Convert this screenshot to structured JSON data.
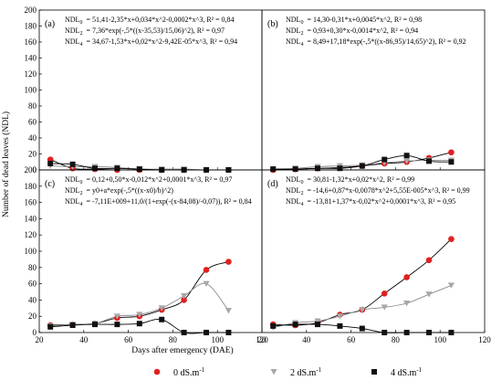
{
  "ylabel": "Number of dead leaves (NDL)",
  "xlabel": "Days after emergency (DAE)",
  "legend": [
    {
      "label": "0 dS.m",
      "sup": "-1",
      "marker": "circle",
      "color": "#e02020"
    },
    {
      "label": "2 dS.m",
      "sup": "-1",
      "marker": "triangle",
      "color": "#a8a8a8"
    },
    {
      "label": "4 dS.m",
      "sup": "-1",
      "marker": "square",
      "color": "#111111"
    }
  ],
  "chart_data": [
    {
      "type": "scatter",
      "panel": "(a)",
      "xlim": [
        20,
        120
      ],
      "ylim": [
        0,
        200
      ],
      "xticks": [],
      "yticks": [
        0,
        20,
        40,
        60,
        80,
        100,
        120,
        140,
        160,
        180,
        200
      ],
      "equations": [
        {
          "name": "NDL",
          "sub": "0",
          "text": "= 51,41-2,35*x+0,034*x^2-0,0002*x^3, R² = 0,84"
        },
        {
          "name": "NDL",
          "sub": "2",
          "text": "= 7,36*exp(-,5*((x-35,53)/15,06)^2), R² = 0,97"
        },
        {
          "name": "NDL",
          "sub": "4",
          "text": "= 34,67-1,53*x+0,02*x^2-9,42E-05*x^3, R² = 0,94"
        }
      ],
      "series": [
        {
          "name": "0 dS.m-1",
          "x": [
            25,
            35,
            45,
            55,
            65,
            75,
            85,
            95,
            105
          ],
          "y": [
            13,
            2,
            1,
            0,
            0,
            0,
            0,
            0,
            0
          ]
        },
        {
          "name": "2 dS.m-1",
          "x": [
            25,
            35,
            45,
            55,
            65,
            75,
            85,
            95,
            105
          ],
          "y": [
            5,
            4,
            4,
            3,
            1,
            1,
            1,
            0,
            0
          ]
        },
        {
          "name": "4 dS.m-1",
          "x": [
            25,
            35,
            45,
            55,
            65,
            75,
            85,
            95,
            105
          ],
          "y": [
            8,
            7,
            2,
            2,
            1,
            0,
            0,
            0,
            0
          ]
        }
      ]
    },
    {
      "type": "scatter",
      "panel": "(b)",
      "xlim": [
        20,
        120
      ],
      "ylim": [
        0,
        200
      ],
      "xticks": [],
      "yticks": [],
      "equations": [
        {
          "name": "NDL",
          "sub": "0",
          "text": "= 14,30-0,31*x+0,0045*x^2, R² = 0,98"
        },
        {
          "name": "NDL",
          "sub": "2",
          "text": "= 0,93+0,30*x-0,0014*x^2, R² = 0,94"
        },
        {
          "name": "NDL",
          "sub": "4",
          "text": "= 8,49+17,18*exp(-,5*((x-86,95)/14,65)^2), R² = 0,92"
        }
      ],
      "series": [
        {
          "name": "0 dS.m-1",
          "x": [
            25,
            35,
            45,
            55,
            65,
            75,
            85,
            95,
            105
          ],
          "y": [
            0,
            1,
            2,
            3,
            5,
            8,
            10,
            15,
            22
          ]
        },
        {
          "name": "2 dS.m-1",
          "x": [
            25,
            35,
            45,
            55,
            65,
            75,
            85,
            95,
            105
          ],
          "y": [
            1,
            2,
            4,
            5,
            6,
            9,
            11,
            12,
            12
          ]
        },
        {
          "name": "4 dS.m-1",
          "x": [
            25,
            35,
            45,
            55,
            65,
            75,
            85,
            95,
            105
          ],
          "y": [
            1,
            1,
            2,
            2,
            5,
            13,
            18,
            11,
            10
          ]
        }
      ]
    },
    {
      "type": "scatter",
      "panel": "(c)",
      "xlim": [
        20,
        120
      ],
      "ylim": [
        0,
        200
      ],
      "xticks": [
        20,
        40,
        60,
        80,
        100,
        120
      ],
      "yticks": [
        0,
        20,
        40,
        60,
        80,
        100,
        120,
        140,
        160,
        180,
        200
      ],
      "equations": [
        {
          "name": "NDL",
          "sub": "0",
          "text": "= 0,12+0,50*x-0,012*x^2+0,0001*x^3, R² = 0,97"
        },
        {
          "name": "NDL",
          "sub": "2",
          "text": "= y0+a*exp(-,5*((x-x0)/b)^2)"
        },
        {
          "name": "NDL",
          "sub": "4",
          "text": "= -7,11E+009+11,0/(1+exp(-(x-84,08)/-0,07)), R² = 0,84"
        }
      ],
      "series": [
        {
          "name": "0 dS.m-1",
          "x": [
            25,
            35,
            45,
            55,
            65,
            75,
            85,
            95,
            105
          ],
          "y": [
            9,
            10,
            11,
            18,
            20,
            28,
            40,
            77,
            87
          ]
        },
        {
          "name": "2 dS.m-1",
          "x": [
            25,
            35,
            45,
            55,
            65,
            75,
            85,
            95,
            105
          ],
          "y": [
            8,
            10,
            11,
            20,
            22,
            30,
            45,
            60,
            27
          ]
        },
        {
          "name": "4 dS.m-1",
          "x": [
            25,
            35,
            45,
            55,
            65,
            75,
            85,
            95,
            105
          ],
          "y": [
            7,
            9,
            10,
            10,
            11,
            16,
            0,
            0,
            0
          ]
        }
      ]
    },
    {
      "type": "scatter",
      "panel": "(d)",
      "xlim": [
        20,
        120
      ],
      "ylim": [
        0,
        200
      ],
      "xticks": [
        20,
        40,
        60,
        80,
        100,
        120
      ],
      "yticks": [],
      "equations": [
        {
          "name": "NDL",
          "sub": "0",
          "text": "= 30,81-1,32*x+0,02*x^2, R² = 0,99"
        },
        {
          "name": "NDL",
          "sub": "2",
          "text": "= -14,6+0,87*x-0,0078*x^2+5,55E-005*x^3, R² = 0,99"
        },
        {
          "name": "NDL",
          "sub": "4",
          "text": "= -13,81+1,37*x-0,02*x^2+0,0001*x^3, R² = 0,95"
        }
      ],
      "series": [
        {
          "name": "0 dS.m-1",
          "x": [
            25,
            35,
            45,
            55,
            65,
            75,
            85,
            95,
            105
          ],
          "y": [
            10,
            9,
            12,
            22,
            28,
            48,
            68,
            89,
            115
          ]
        },
        {
          "name": "2 dS.m-1",
          "x": [
            25,
            35,
            45,
            55,
            65,
            75,
            85,
            95,
            105
          ],
          "y": [
            6,
            12,
            14,
            20,
            28,
            31,
            36,
            47,
            58
          ]
        },
        {
          "name": "4 dS.m-1",
          "x": [
            25,
            35,
            45,
            55,
            65,
            75,
            85,
            95,
            105
          ],
          "y": [
            8,
            10,
            10,
            8,
            5,
            0,
            0,
            0,
            0
          ]
        }
      ]
    }
  ]
}
